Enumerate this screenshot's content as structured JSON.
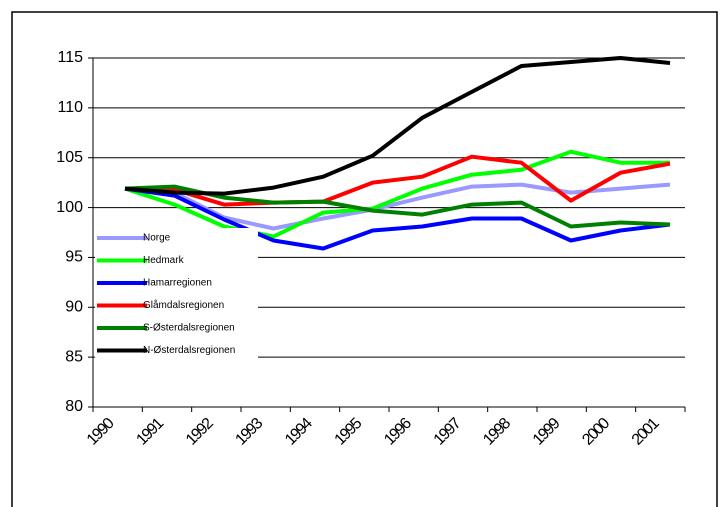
{
  "chart_data": {
    "type": "line",
    "categories": [
      "1990",
      "1991",
      "1992",
      "1993",
      "1994",
      "1995",
      "1996",
      "1997",
      "1998",
      "1999",
      "2000",
      "2001"
    ],
    "series": [
      {
        "name": "Norge",
        "color": "#9999ff",
        "values": [
          101.9,
          101.5,
          99,
          97.9,
          98.9,
          99.8,
          101,
          102.1,
          102.3,
          101.5,
          101.9,
          102.3
        ]
      },
      {
        "name": "Hedmark",
        "color": "#00ff00",
        "values": [
          101.9,
          100.3,
          98.1,
          97.1,
          99.5,
          99.9,
          101.9,
          103.3,
          103.8,
          105.6,
          104.5,
          104.5
        ]
      },
      {
        "name": "Hamarregionen",
        "color": "#0000ff",
        "values": [
          101.9,
          101.2,
          98.8,
          96.7,
          95.9,
          97.7,
          98.1,
          98.9,
          98.9,
          96.7,
          97.7,
          98.3
        ]
      },
      {
        "name": "Glåmdalsregionen",
        "color": "#ff0000",
        "values": [
          101.9,
          101.8,
          100.3,
          100.5,
          100.6,
          102.5,
          103.1,
          105.1,
          104.5,
          100.7,
          103.5,
          104.4
        ]
      },
      {
        "name": "S-Østerdalsregionen",
        "color": "#008000",
        "values": [
          101.9,
          102.1,
          101,
          100.5,
          100.6,
          99.7,
          99.3,
          100.3,
          100.5,
          98.1,
          98.5,
          98.3
        ]
      },
      {
        "name": "N-Østerdalsregionen",
        "color": "#000000",
        "values": [
          101.9,
          101.5,
          101.4,
          102,
          103.1,
          105.2,
          109,
          111.6,
          114.2,
          114.6,
          115,
          114.5
        ]
      }
    ],
    "ylim": [
      80,
      115
    ],
    "yticks": [
      80,
      85,
      90,
      95,
      100,
      105,
      110,
      115
    ],
    "grid": true
  }
}
